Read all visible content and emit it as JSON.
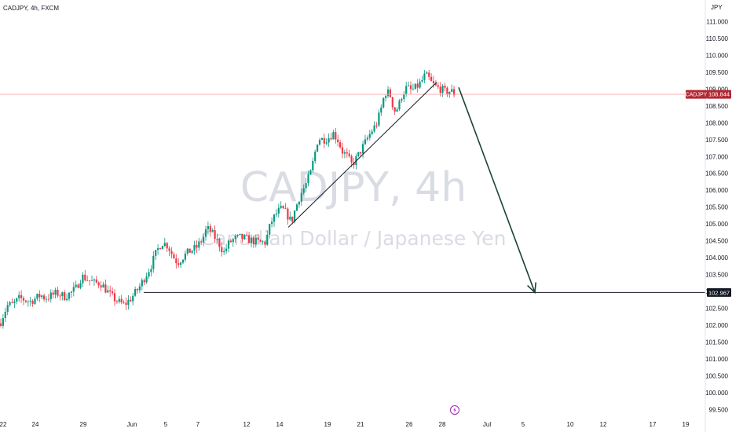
{
  "header": {
    "symbol_line": "CADJPY, 4h, FXCM"
  },
  "watermark": {
    "line1": "CADJPY, 4h",
    "line2": "Canadian Dollar / Japanese Yen"
  },
  "price_axis": {
    "currency": "JPY"
  },
  "current_price": {
    "symbol": "CADJPY",
    "value": "108.844"
  },
  "support_level": {
    "value": "102.967"
  },
  "colors": {
    "up": "#089981",
    "down": "#f23645",
    "text": "#131722",
    "price_tag": "#b22833",
    "arrow": "#1b4332",
    "event_icon": "#9c27b0"
  },
  "chart_data": {
    "type": "candlestick",
    "ylim": [
      99.25,
      111.4
    ],
    "y_ticks": [
      "111.000",
      "110.500",
      "110.000",
      "109.500",
      "109.000",
      "108.500",
      "108.000",
      "107.500",
      "107.000",
      "106.500",
      "106.000",
      "105.500",
      "105.000",
      "104.500",
      "104.000",
      "103.500",
      "103.000",
      "102.500",
      "102.000",
      "101.500",
      "101.000",
      "100.500",
      "100.000",
      "99.500"
    ],
    "x_ticks": [
      "22",
      "24",
      "29",
      "Jun",
      "5",
      "7",
      "12",
      "14",
      "19",
      "21",
      "26",
      "28",
      "Jul",
      "5",
      "10",
      "12",
      "17",
      "19"
    ],
    "price_anchors": [
      [
        0,
        102.05
      ],
      [
        5,
        102.35
      ],
      [
        10,
        102.6
      ],
      [
        16,
        102.6
      ],
      [
        25,
        102.8
      ],
      [
        38,
        102.7
      ],
      [
        46,
        102.8
      ],
      [
        52,
        102.9
      ],
      [
        57,
        102.8
      ],
      [
        63,
        102.85
      ],
      [
        72,
        102.95
      ],
      [
        82,
        102.85
      ],
      [
        90,
        102.95
      ],
      [
        97,
        103.1
      ],
      [
        104,
        103.45
      ],
      [
        112,
        103.35
      ],
      [
        120,
        103.25
      ],
      [
        128,
        103.25
      ],
      [
        135,
        103.05
      ],
      [
        142,
        102.85
      ],
      [
        150,
        102.7
      ],
      [
        158,
        102.6
      ],
      [
        165,
        102.75
      ],
      [
        172,
        102.95
      ],
      [
        178,
        103.15
      ],
      [
        185,
        103.45
      ],
      [
        192,
        103.75
      ],
      [
        198,
        104.1
      ],
      [
        203,
        104.35
      ],
      [
        207,
        104.45
      ],
      [
        214,
        104.35
      ],
      [
        220,
        104.05
      ],
      [
        226,
        103.85
      ],
      [
        234,
        104.05
      ],
      [
        242,
        104.2
      ],
      [
        250,
        104.3
      ],
      [
        258,
        104.55
      ],
      [
        262,
        104.8
      ],
      [
        266,
        104.85
      ],
      [
        272,
        104.65
      ],
      [
        278,
        104.45
      ],
      [
        285,
        104.15
      ],
      [
        292,
        104.45
      ],
      [
        298,
        104.55
      ],
      [
        306,
        104.6
      ],
      [
        314,
        104.55
      ],
      [
        322,
        104.5
      ],
      [
        330,
        104.45
      ],
      [
        338,
        104.45
      ],
      [
        345,
        105.05
      ],
      [
        353,
        105.35
      ],
      [
        359,
        105.45
      ],
      [
        365,
        105.3
      ],
      [
        371,
        105.05
      ],
      [
        376,
        105.45
      ],
      [
        382,
        105.85
      ],
      [
        390,
        106.2
      ],
      [
        396,
        106.55
      ],
      [
        400,
        107.0
      ],
      [
        405,
        107.55
      ],
      [
        411,
        107.5
      ],
      [
        418,
        107.55
      ],
      [
        424,
        107.7
      ],
      [
        430,
        107.5
      ],
      [
        436,
        107.15
      ],
      [
        442,
        107.0
      ],
      [
        448,
        106.75
      ],
      [
        454,
        106.95
      ],
      [
        460,
        107.2
      ],
      [
        467,
        107.5
      ],
      [
        473,
        107.75
      ],
      [
        479,
        107.95
      ],
      [
        484,
        108.3
      ],
      [
        488,
        108.7
      ],
      [
        492,
        108.95
      ],
      [
        497,
        108.8
      ],
      [
        502,
        108.35
      ],
      [
        507,
        108.45
      ],
      [
        512,
        108.85
      ],
      [
        518,
        109.05
      ],
      [
        524,
        108.95
      ],
      [
        530,
        109.05
      ],
      [
        536,
        109.2
      ],
      [
        541,
        109.4
      ],
      [
        545,
        109.35
      ],
      [
        550,
        109.15
      ],
      [
        556,
        109.05
      ],
      [
        562,
        109.0
      ],
      [
        568,
        108.9
      ],
      [
        574,
        108.95
      ],
      [
        579,
        108.85
      ]
    ],
    "trendline": {
      "from": [
        367,
        104.9
      ],
      "to": [
        556,
        109.2
      ]
    },
    "projection_arrow": {
      "from": [
        584,
        109.05
      ],
      "to": [
        681,
        102.967
      ]
    },
    "horizontal_lines": [
      {
        "value": 108.844,
        "style": "current"
      },
      {
        "value": 102.967,
        "style": "support"
      }
    ]
  }
}
